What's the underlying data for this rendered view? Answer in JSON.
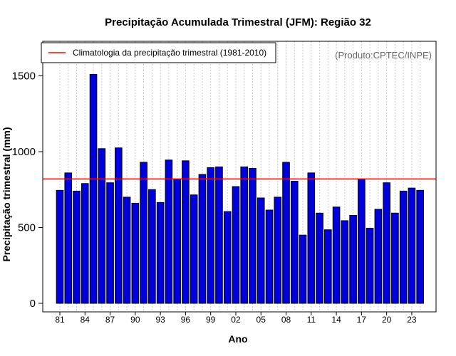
{
  "chart_data": {
    "type": "bar",
    "title": "Precipitação Acumulada Trimestral (JFM): Região 32",
    "xlabel": "Ano",
    "ylabel": "Precipitação trimestral (mm)",
    "ylim": [
      0,
      1700
    ],
    "yticks": [
      0,
      500,
      1000,
      1500
    ],
    "categories": [
      "81",
      "82",
      "83",
      "84",
      "85",
      "86",
      "87",
      "88",
      "89",
      "90",
      "91",
      "92",
      "93",
      "94",
      "95",
      "96",
      "97",
      "98",
      "99",
      "00",
      "01",
      "02",
      "03",
      "04",
      "05",
      "06",
      "07",
      "08",
      "09",
      "10",
      "11",
      "12",
      "13",
      "14",
      "15",
      "16",
      "17",
      "18",
      "19",
      "20",
      "21",
      "22",
      "23",
      "24"
    ],
    "xtick_labels": [
      "81",
      "84",
      "87",
      "90",
      "93",
      "96",
      "99",
      "02",
      "05",
      "08",
      "11",
      "14",
      "17",
      "20",
      "23"
    ],
    "values": [
      745,
      860,
      740,
      790,
      1510,
      1020,
      795,
      1025,
      700,
      660,
      930,
      750,
      665,
      945,
      820,
      940,
      715,
      850,
      895,
      900,
      605,
      770,
      900,
      890,
      695,
      615,
      700,
      930,
      805,
      450,
      860,
      595,
      485,
      635,
      545,
      580,
      820,
      495,
      620,
      795,
      595,
      740,
      760,
      745
    ],
    "bar_color": "#0000dd",
    "climatology": {
      "value": 820,
      "label": "Climatologia da precipitação trimestral (1981-2010)",
      "color": "#ff0000"
    },
    "credit": "(Produto:CPTEC/INPE)",
    "grid": "vertical dotted",
    "legend_position": "top-left"
  }
}
